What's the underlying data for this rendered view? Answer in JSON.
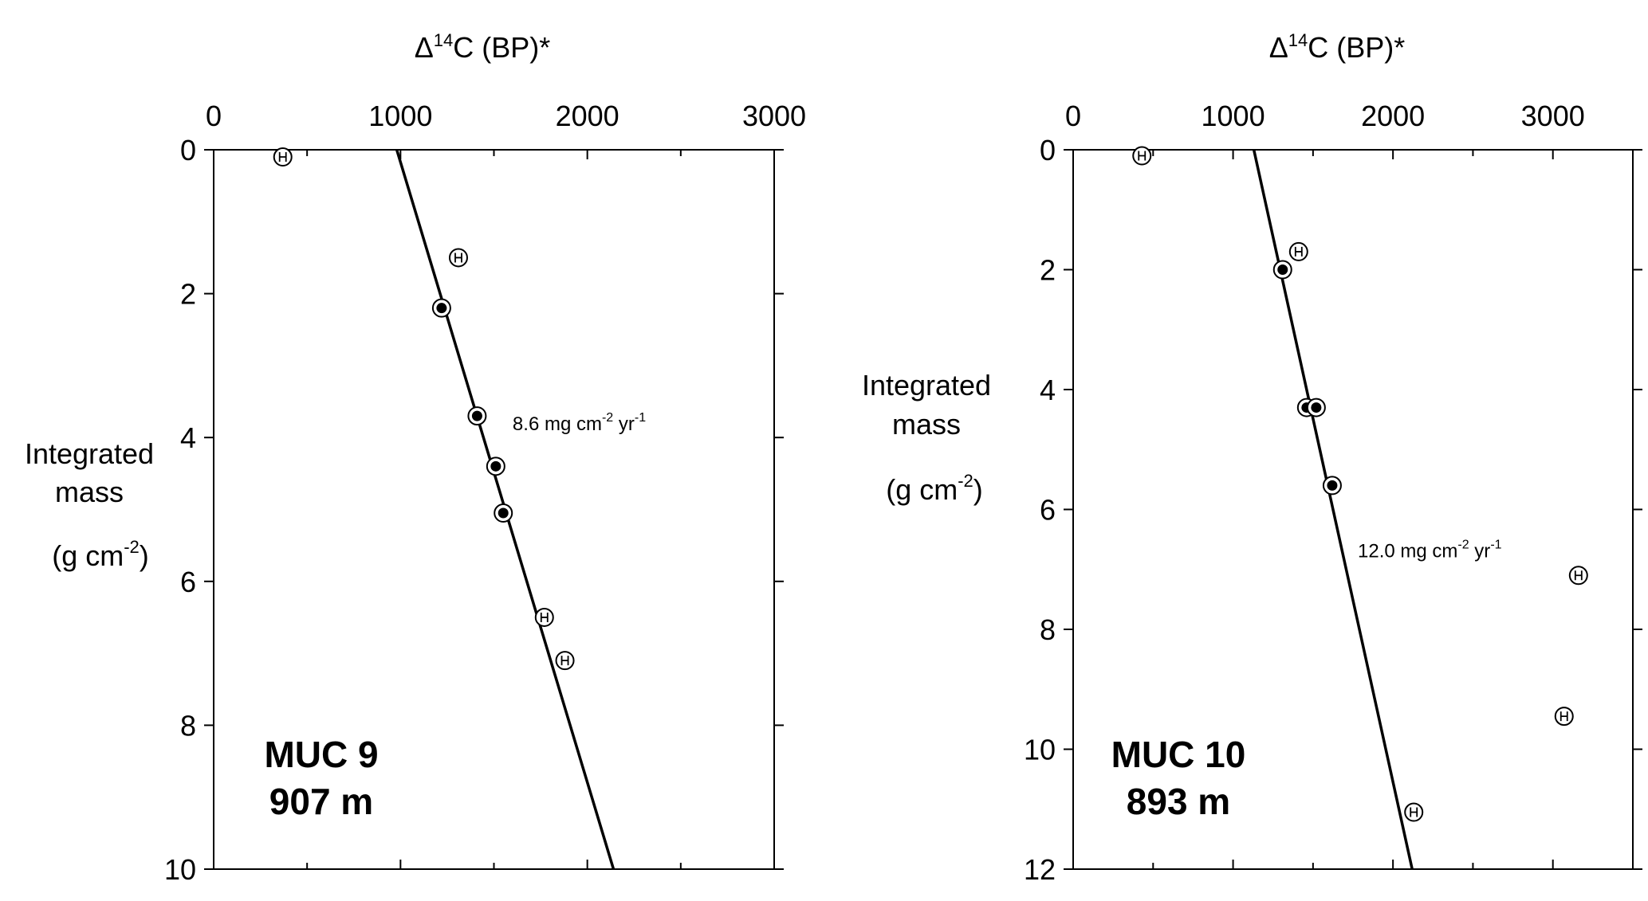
{
  "chart_data": [
    {
      "type": "scatter",
      "xlabel": "Δ14C (BP)*",
      "xlabel_parts": {
        "prefix": "Δ",
        "sup": "14",
        "suffix": "C (BP)*"
      },
      "ylabel": "Integrated mass (g cm-2)",
      "ylabel_parts": {
        "line1": "Integrated",
        "line2": "mass",
        "line3_prefix": "(g cm",
        "line3_sup": "-2",
        "line3_suffix": ")"
      },
      "xlim": [
        0,
        3000
      ],
      "ylim": [
        10,
        0
      ],
      "x_axis_position": "top",
      "x_ticks": [
        0,
        1000,
        2000,
        3000
      ],
      "y_ticks": [
        0,
        2,
        4,
        6,
        8,
        10
      ],
      "grid": false,
      "core_label": "MUC 9",
      "depth_label": "907 m",
      "series": [
        {
          "marker": "open-circle-H",
          "points": [
            [
              370,
              0.1
            ],
            [
              1310,
              1.5
            ],
            [
              1770,
              6.5
            ],
            [
              1880,
              7.1
            ]
          ]
        },
        {
          "marker": "filled-dot-circle",
          "points": [
            [
              1220,
              2.2
            ],
            [
              1410,
              3.7
            ],
            [
              1510,
              4.4
            ],
            [
              1550,
              5.05
            ]
          ]
        }
      ],
      "fit_line": {
        "points": [
          [
            980,
            0
          ],
          [
            2140,
            10
          ]
        ]
      },
      "annotation": {
        "prefix": "8.6 mg cm",
        "sup1": "-2",
        "mid": " yr",
        "sup2": "-1",
        "x": 1600,
        "y": 3.9
      }
    },
    {
      "type": "scatter",
      "xlabel": "Δ14C (BP)*",
      "xlabel_parts": {
        "prefix": "Δ",
        "sup": "14",
        "suffix": "C (BP)*"
      },
      "ylabel": "Integrated mass (g cm-2)",
      "ylabel_parts": {
        "line1": "Integrated",
        "line2": "mass",
        "line3_prefix": "(g cm",
        "line3_sup": "-2",
        "line3_suffix": ")"
      },
      "xlim": [
        0,
        3500
      ],
      "ylim": [
        12,
        0
      ],
      "x_axis_position": "top",
      "x_ticks": [
        0,
        1000,
        2000,
        3000
      ],
      "y_ticks": [
        0,
        2,
        4,
        6,
        8,
        10,
        12
      ],
      "grid": false,
      "core_label": "MUC 10",
      "depth_label": "893 m",
      "series": [
        {
          "marker": "open-circle-H",
          "points": [
            [
              430,
              0.1
            ],
            [
              1410,
              1.7
            ],
            [
              3160,
              7.1
            ],
            [
              3070,
              9.45
            ],
            [
              2130,
              11.05
            ]
          ]
        },
        {
          "marker": "filled-dot-circle",
          "points": [
            [
              1310,
              2.0
            ],
            [
              1460,
              4.3
            ],
            [
              1520,
              4.3
            ],
            [
              1620,
              5.6
            ]
          ]
        }
      ],
      "fit_line": {
        "points": [
          [
            1130,
            0
          ],
          [
            2120,
            12
          ]
        ]
      },
      "annotation": {
        "prefix": "12.0 mg cm",
        "sup1": "-2",
        "mid": " yr",
        "sup2": "-1",
        "x": 1780,
        "y": 6.8
      }
    }
  ]
}
